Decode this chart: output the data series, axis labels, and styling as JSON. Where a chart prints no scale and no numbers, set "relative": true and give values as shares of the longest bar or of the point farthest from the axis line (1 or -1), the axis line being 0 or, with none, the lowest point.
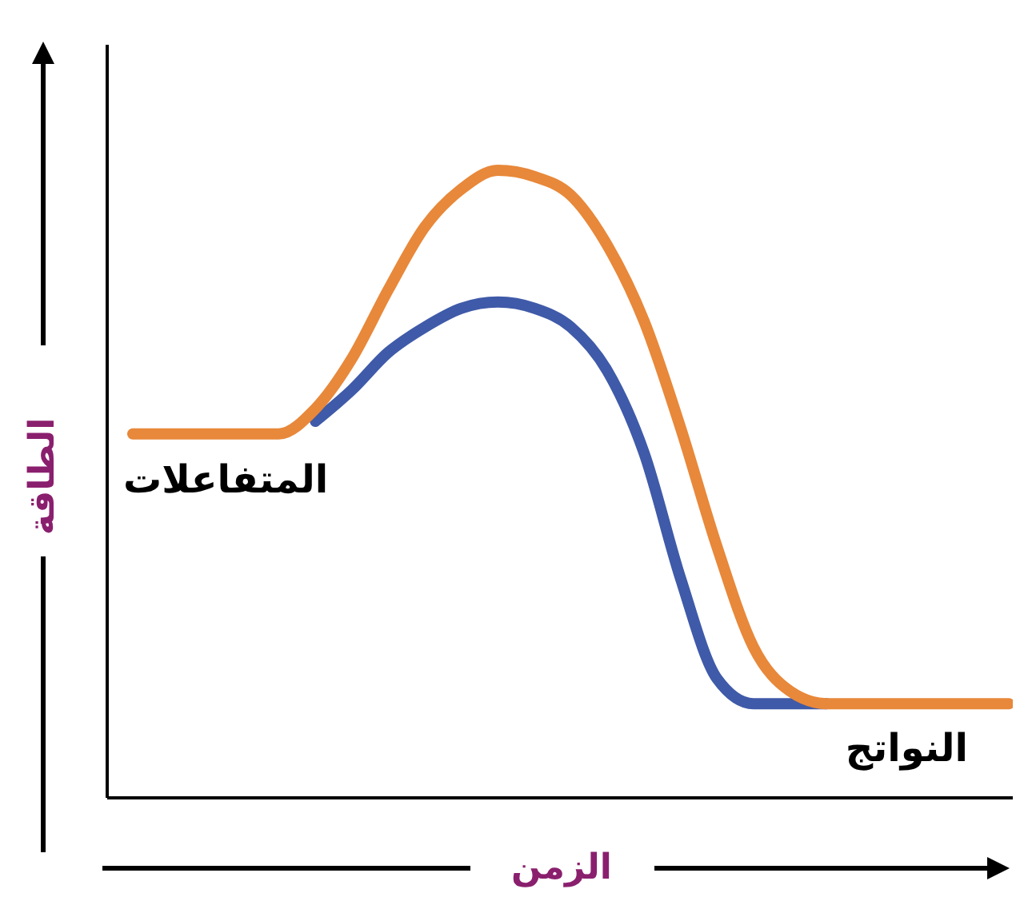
{
  "chart_data": {
    "type": "line",
    "relative": true,
    "xlabel": "الزمن",
    "ylabel": "الطاقة",
    "line_style": "solid",
    "categories": [
      null,
      null,
      null,
      null,
      null,
      null,
      null,
      null,
      null,
      null,
      null,
      null,
      null,
      null,
      null,
      null,
      null,
      null,
      null,
      null,
      null,
      null,
      null,
      null,
      null
    ],
    "series": [
      {
        "color": "#3f5aa8",
        "values": [
          null,
          null,
          null,
          null,
          null,
          0.6,
          0.65,
          0.71,
          0.75,
          0.78,
          0.79,
          0.78,
          0.75,
          0.68,
          0.55,
          0.35,
          0.19,
          0.15,
          0.15,
          0.15,
          null,
          null,
          null,
          null,
          null
        ]
      },
      {
        "color": "#e8883a",
        "values": [
          0.58,
          0.58,
          0.58,
          0.58,
          0.58,
          0.62,
          0.7,
          0.81,
          0.91,
          0.97,
          1,
          0.99,
          0.96,
          0.88,
          0.76,
          0.59,
          0.4,
          0.24,
          0.17,
          0.15,
          0.15,
          0.15,
          0.15,
          0.15,
          0.15
        ]
      }
    ],
    "annotations": [
      "المتفاعلات",
      "النواتج"
    ]
  }
}
